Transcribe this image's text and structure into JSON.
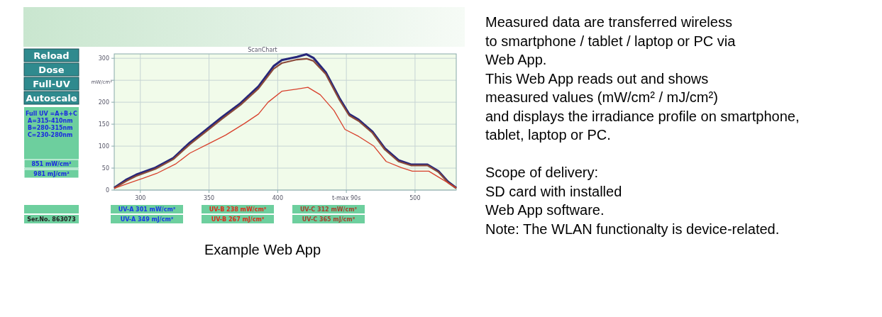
{
  "chart_data": {
    "type": "line",
    "title": "ScanChart",
    "ylabel": "mW/cm²",
    "xlim": [
      281,
      530
    ],
    "ylim": [
      0,
      310
    ],
    "xticks": [
      300,
      350,
      400,
      {
        "value": 450,
        "label": "t-max 90s"
      },
      500
    ],
    "yticks": [
      0,
      50,
      100,
      150,
      200,
      {
        "value": 250,
        "label": null
      },
      300
    ],
    "grid": true,
    "series": [
      {
        "color": "#26267a",
        "x": [
          281,
          290,
          297,
          311,
          324,
          336,
          345,
          359,
          373,
          386,
          397,
          403,
          414,
          421,
          426,
          435,
          445,
          452,
          459,
          469,
          478,
          488,
          497,
          509,
          517,
          524,
          530
        ],
        "values": [
          5,
          24,
          35,
          51,
          73,
          108,
          130,
          165,
          198,
          236,
          282,
          296,
          303,
          309,
          301,
          268,
          209,
          173,
          160,
          133,
          95,
          68,
          58,
          58,
          43,
          19,
          5
        ]
      },
      {
        "color": "#8b4a3a",
        "x": [
          281,
          290,
          297,
          311,
          324,
          336,
          345,
          359,
          373,
          386,
          397,
          403,
          414,
          421,
          426,
          435,
          445,
          452,
          459,
          469,
          478,
          488,
          497,
          509,
          517,
          524,
          530
        ],
        "values": [
          4,
          21,
          32,
          48,
          70,
          104,
          126,
          161,
          194,
          231,
          276,
          289,
          297,
          299,
          294,
          264,
          205,
          170,
          157,
          130,
          92,
          65,
          56,
          56,
          41,
          17,
          4
        ]
      },
      {
        "color": "#d8402c",
        "x": [
          281,
          290,
          302,
          312,
          326,
          336,
          350,
          362,
          376,
          386,
          393,
          403,
          414,
          422,
          431,
          441,
          449,
          459,
          470,
          479,
          490,
          498,
          510,
          520,
          530
        ],
        "values": [
          4,
          14,
          27,
          38,
          60,
          84,
          106,
          125,
          152,
          173,
          200,
          225,
          230,
          234,
          217,
          181,
          138,
          122,
          100,
          65,
          51,
          43,
          43,
          24,
          5
        ]
      }
    ],
    "annotations": [
      "Reload",
      "Dose",
      "Full-UV",
      "Autoscale",
      "Full UV =A+B+C",
      "A=315-410nm",
      "B=280-315nm",
      "C=230-280nm",
      "851 mW/cm²",
      "981 mJ/cm²",
      "Ser.No. 863073",
      "UV-A 301 mW/cm²",
      "UV-A 349 mJ/cm²",
      "UV-B 238 mW/cm²",
      "UV-B 267 mJ/cm²",
      "UV-C 312 mW/cm²",
      "UV-C 365 mJ/cm²",
      "Example Web App",
      "Measured data are transferred wireless",
      "to smartphone / tablet / laptop or PC via",
      "Web App.",
      "This Web App reads out and shows",
      "measured values (mW/cm² / mJ/cm²)",
      "and displays the irradiance profile on smartphone,",
      "tablet, laptop or PC.",
      "Scope of delivery:",
      "SD card with installed",
      "Web App software.",
      "Note: The WLAN functionalty is device-related."
    ]
  }
}
